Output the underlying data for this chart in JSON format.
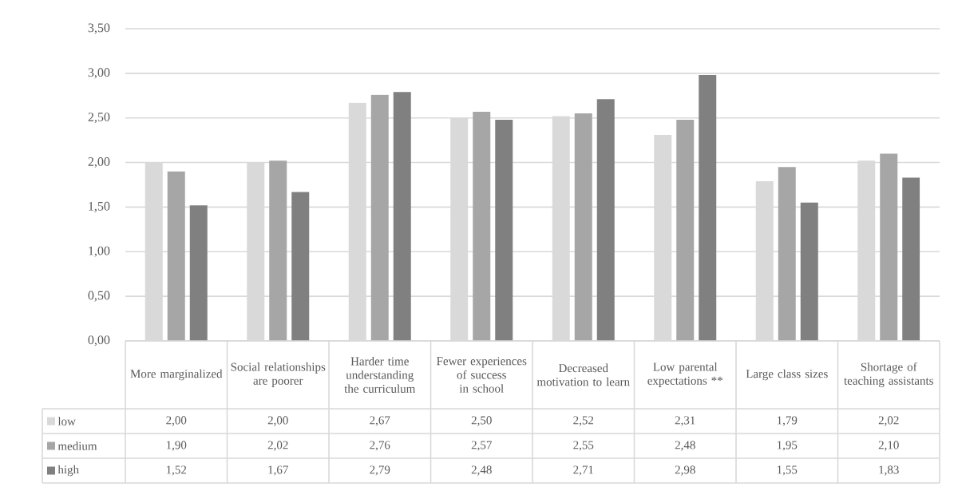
{
  "chart_data": {
    "type": "bar",
    "categories": [
      "More marginalized",
      "Social relationships are poorer",
      "Harder time understanding the curriculum",
      "Fewer experiences of success in school",
      "Decreased motivation to learn",
      "Low parental expectations **",
      "Large class sizes",
      "Shortage of teaching assistants"
    ],
    "series": [
      {
        "name": "low",
        "color": "#d9d9d9",
        "values": [
          2.0,
          2.0,
          2.67,
          2.5,
          2.52,
          2.31,
          1.79,
          2.02
        ],
        "value_labels": [
          "2,00",
          "2,00",
          "2,67",
          "2,50",
          "2,52",
          "2,31",
          "1,79",
          "2,02"
        ]
      },
      {
        "name": "medium",
        "color": "#a6a6a6",
        "values": [
          1.9,
          2.02,
          2.76,
          2.57,
          2.55,
          2.48,
          1.95,
          2.1
        ],
        "value_labels": [
          "1,90",
          "2,02",
          "2,76",
          "2,57",
          "2,55",
          "2,48",
          "1,95",
          "2,10"
        ]
      },
      {
        "name": "high",
        "color": "#808080",
        "values": [
          1.52,
          1.67,
          2.79,
          2.48,
          2.71,
          2.98,
          1.55,
          1.83
        ],
        "value_labels": [
          "1,52",
          "1,67",
          "2,79",
          "2,48",
          "2,71",
          "2,98",
          "1,55",
          "1,83"
        ]
      }
    ],
    "ylim": [
      0,
      3.5
    ],
    "yticks": [
      {
        "value": 0,
        "label": "0,00"
      },
      {
        "value": 0.5,
        "label": "0,50"
      },
      {
        "value": 1,
        "label": "1,00"
      },
      {
        "value": 1.5,
        "label": "1,50"
      },
      {
        "value": 2,
        "label": "2,00"
      },
      {
        "value": 2.5,
        "label": "2,50"
      },
      {
        "value": 3,
        "label": "3,00"
      },
      {
        "value": 3.5,
        "label": "3,50"
      }
    ],
    "grid": "y",
    "legend": "bottom"
  }
}
